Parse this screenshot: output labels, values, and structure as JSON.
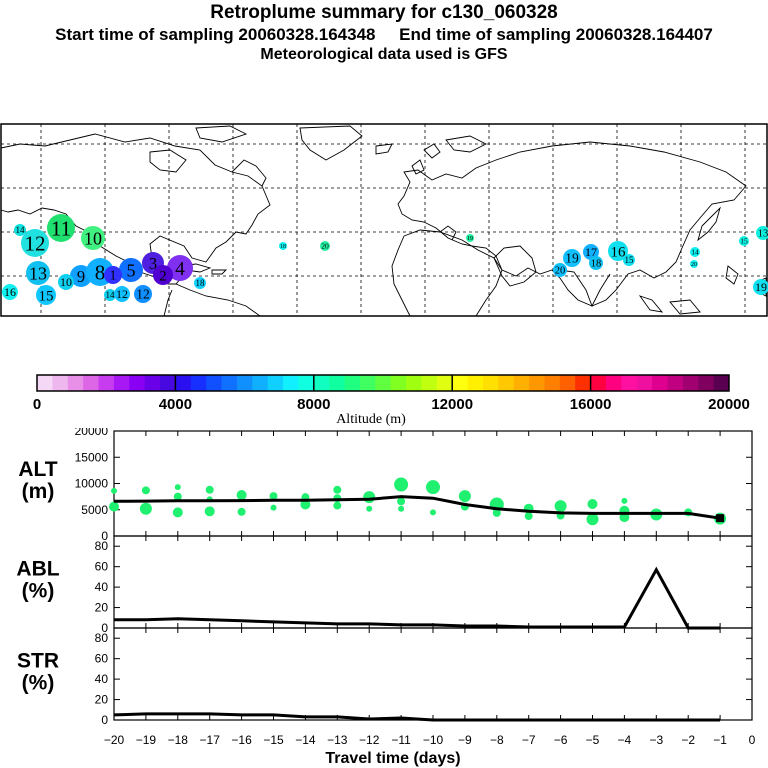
{
  "header": {
    "title": "Retroplume summary for c130_060328",
    "start_label": "Start time of sampling 20060328.164348",
    "end_label": "End time of sampling 20060328.164407",
    "met_label": "Meteorological data used is GFS"
  },
  "colors": {
    "ink": "#000000",
    "scale": [
      "#f5d8f5",
      "#eeb8ee",
      "#e890e8",
      "#dc66e6",
      "#c83cf0",
      "#a818f5",
      "#8a00f5",
      "#6a00e8",
      "#4808e0",
      "#2a10f0",
      "#1830ff",
      "#1050ff",
      "#1070ff",
      "#1090ff",
      "#10b0ff",
      "#10d0ff",
      "#10f0ff",
      "#10ffe0",
      "#10ffc0",
      "#10ffa0",
      "#20ff80",
      "#40ff60",
      "#60ff40",
      "#80ff20",
      "#a0ff10",
      "#c0ff10",
      "#e0ff10",
      "#ffff10",
      "#fff000",
      "#ffe000",
      "#ffc800",
      "#ffb000",
      "#ff9800",
      "#ff8000",
      "#ff6000",
      "#ff3000",
      "#ff0040",
      "#ff0080",
      "#ff10a0",
      "#f010a0",
      "#e00090",
      "#c00080",
      "#a00070",
      "#800060",
      "#5a0050"
    ]
  },
  "map": {
    "markers": [
      {
        "label": "11",
        "color": "#20e070"
      },
      {
        "label": "10",
        "color": "#40f080"
      },
      {
        "label": "12",
        "color": "#20e0e0"
      },
      {
        "label": "13",
        "color": "#10c0f0"
      },
      {
        "label": "9",
        "color": "#10a0ff"
      },
      {
        "label": "8",
        "color": "#10b0ff"
      },
      {
        "label": "5",
        "color": "#1070ff"
      },
      {
        "label": "4",
        "color": "#8030f0"
      },
      {
        "label": "3",
        "color": "#5020e0"
      },
      {
        "label": "2",
        "color": "#5000d0"
      },
      {
        "label": "1",
        "color": "#3030ff"
      },
      {
        "label": "15",
        "color": "#10c8ff"
      },
      {
        "label": "14",
        "color": "#10e0e0"
      },
      {
        "label": "16",
        "color": "#10f0f0"
      },
      {
        "label": "10",
        "color": "#10d0f0"
      },
      {
        "label": "12",
        "color": "#1090ff"
      },
      {
        "label": "19",
        "color": "#10c0ff"
      },
      {
        "label": "17",
        "color": "#10b0ff"
      },
      {
        "label": "18",
        "color": "#10c0f0"
      },
      {
        "label": "20",
        "color": "#10c0ff"
      },
      {
        "label": "16",
        "color": "#10e0f0"
      },
      {
        "label": "15",
        "color": "#10e0f0"
      },
      {
        "label": "14",
        "color": "#10f0f0"
      },
      {
        "label": "20",
        "color": "#10f0f0"
      },
      {
        "label": "15",
        "color": "#10f0e0"
      },
      {
        "label": "13",
        "color": "#10f0e0"
      },
      {
        "label": "19",
        "color": "#10e0f0"
      },
      {
        "label": "18",
        "color": "#10f0f0"
      },
      {
        "label": "20",
        "color": "#20f0a0"
      },
      {
        "label": "19",
        "color": "#20f0a0"
      },
      {
        "label": "18",
        "color": "#10d0ff"
      },
      {
        "label": "14",
        "color": "#10d0f0"
      },
      {
        "label": "12",
        "color": "#10c0ff"
      }
    ]
  },
  "colorbar": {
    "tick_labels": [
      "0",
      "4000",
      "8000",
      "12000",
      "16000",
      "20000"
    ],
    "axis_label": "Altitude (m)"
  },
  "chart_data": {
    "type": "line",
    "x": [
      -20,
      -19,
      -18,
      -17,
      -16,
      -15,
      -14,
      -13,
      -12,
      -11,
      -10,
      -9,
      -8,
      -7,
      -6,
      -5,
      -4,
      -3,
      -2,
      -1
    ],
    "xlim": [
      -20,
      0
    ],
    "x_ticks": [
      "−20",
      "−19",
      "−18",
      "−17",
      "−16",
      "−15",
      "−14",
      "−13",
      "−12",
      "−11",
      "−10",
      "−9",
      "−8",
      "−7",
      "−6",
      "−5",
      "−4",
      "−3",
      "−2",
      "−1",
      "0"
    ],
    "xlabel": "Travel time (days)",
    "panels": [
      {
        "name": "ALT",
        "ylabel_line1": "ALT",
        "ylabel_line2": "(m)",
        "ylim": [
          0,
          20000
        ],
        "y_ticks": [
          "0",
          "5000",
          "10000",
          "15000",
          "20000"
        ],
        "series": [
          {
            "name": "mean altitude",
            "values": [
              6600,
              6650,
              6700,
              6700,
              6750,
              6800,
              6800,
              6900,
              7000,
              7500,
              7200,
              6000,
              5200,
              4700,
              4400,
              4300,
              4300,
              4300,
              4300,
              3400
            ]
          }
        ],
        "dots": [
          {
            "x": -20,
            "y": 8600,
            "r": 3
          },
          {
            "x": -20,
            "y": 5600,
            "r": 5
          },
          {
            "x": -19,
            "y": 8700,
            "r": 4
          },
          {
            "x": -19,
            "y": 5200,
            "r": 6
          },
          {
            "x": -18,
            "y": 9300,
            "r": 3
          },
          {
            "x": -18,
            "y": 7500,
            "r": 4
          },
          {
            "x": -18,
            "y": 4500,
            "r": 5
          },
          {
            "x": -17,
            "y": 8800,
            "r": 4
          },
          {
            "x": -17,
            "y": 7000,
            "r": 3
          },
          {
            "x": -17,
            "y": 4700,
            "r": 5
          },
          {
            "x": -16,
            "y": 7800,
            "r": 5
          },
          {
            "x": -16,
            "y": 4600,
            "r": 4
          },
          {
            "x": -15,
            "y": 7600,
            "r": 4
          },
          {
            "x": -15,
            "y": 5400,
            "r": 3
          },
          {
            "x": -14,
            "y": 7400,
            "r": 4
          },
          {
            "x": -14,
            "y": 6000,
            "r": 5
          },
          {
            "x": -13,
            "y": 8800,
            "r": 4
          },
          {
            "x": -13,
            "y": 7200,
            "r": 4
          },
          {
            "x": -13,
            "y": 5800,
            "r": 4
          },
          {
            "x": -12,
            "y": 7400,
            "r": 6
          },
          {
            "x": -12,
            "y": 5200,
            "r": 3
          },
          {
            "x": -11,
            "y": 9800,
            "r": 7
          },
          {
            "x": -11,
            "y": 6600,
            "r": 4
          },
          {
            "x": -11,
            "y": 5200,
            "r": 3
          },
          {
            "x": -10,
            "y": 9300,
            "r": 7
          },
          {
            "x": -10,
            "y": 4500,
            "r": 3
          },
          {
            "x": -9,
            "y": 7600,
            "r": 6
          },
          {
            "x": -9,
            "y": 5600,
            "r": 4
          },
          {
            "x": -8,
            "y": 6000,
            "r": 7
          },
          {
            "x": -8,
            "y": 4400,
            "r": 4
          },
          {
            "x": -7,
            "y": 5200,
            "r": 5
          },
          {
            "x": -7,
            "y": 3800,
            "r": 4
          },
          {
            "x": -6,
            "y": 5700,
            "r": 6
          },
          {
            "x": -6,
            "y": 3900,
            "r": 4
          },
          {
            "x": -5,
            "y": 6100,
            "r": 5
          },
          {
            "x": -5,
            "y": 3200,
            "r": 6
          },
          {
            "x": -4,
            "y": 6700,
            "r": 3
          },
          {
            "x": -4,
            "y": 4800,
            "r": 5
          },
          {
            "x": -4,
            "y": 3600,
            "r": 5
          },
          {
            "x": -3,
            "y": 4100,
            "r": 6
          },
          {
            "x": -2,
            "y": 4500,
            "r": 4
          },
          {
            "x": -1,
            "y": 3300,
            "r": 6
          }
        ],
        "dot_color": "#20f070"
      },
      {
        "name": "ABL",
        "ylabel_line1": "ABL",
        "ylabel_line2": "(%)",
        "ylim": [
          0,
          90
        ],
        "y_ticks": [
          "0",
          "20",
          "40",
          "60",
          "80"
        ],
        "series": [
          {
            "name": "ABL fraction",
            "values": [
              8,
              8,
              9,
              8,
              7,
              6,
              5,
              4,
              4,
              3,
              3,
              2,
              2,
              1,
              1,
              1,
              1,
              57,
              0,
              0
            ]
          }
        ]
      },
      {
        "name": "STR",
        "ylabel_line1": "STR",
        "ylabel_line2": "(%)",
        "ylim": [
          0,
          90
        ],
        "y_ticks": [
          "0",
          "20",
          "40",
          "60",
          "80"
        ],
        "series": [
          {
            "name": "stratosphere fraction",
            "values": [
              5,
              6,
              6,
              6,
              5,
              5,
              3,
              3,
              1,
              2,
              0,
              0,
              0,
              0,
              0,
              0,
              0,
              0,
              0,
              0
            ]
          }
        ]
      }
    ]
  }
}
